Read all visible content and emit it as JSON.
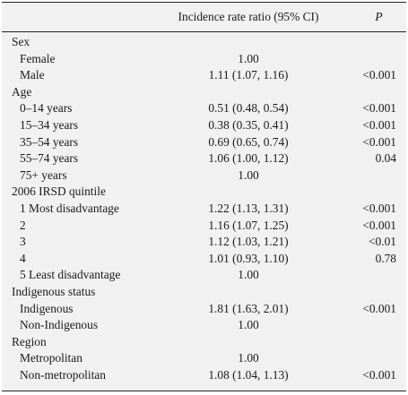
{
  "header": {
    "label": "",
    "irr": "Incidence rate ratio (95% CI)",
    "p": "P"
  },
  "rows": [
    {
      "type": "group",
      "label": "Sex",
      "irr": "",
      "p": ""
    },
    {
      "type": "level",
      "label": "Female",
      "irr": "1.00",
      "p": ""
    },
    {
      "type": "level",
      "label": "Male",
      "irr": "1.11 (1.07, 1.16)",
      "p": "<0.001"
    },
    {
      "type": "group",
      "label": "Age",
      "irr": "",
      "p": ""
    },
    {
      "type": "level",
      "label": "0–14 years",
      "irr": "0.51 (0.48, 0.54)",
      "p": "<0.001"
    },
    {
      "type": "level",
      "label": "15–34 years",
      "irr": "0.38 (0.35, 0.41)",
      "p": "<0.001"
    },
    {
      "type": "level",
      "label": "35–54 years",
      "irr": "0.69 (0.65, 0.74)",
      "p": "<0.001"
    },
    {
      "type": "level",
      "label": "55–74 years",
      "irr": "1.06 (1.00, 1.12)",
      "p": "0.04"
    },
    {
      "type": "level",
      "label": "75+ years",
      "irr": "1.00",
      "p": ""
    },
    {
      "type": "group",
      "label": "2006 IRSD quintile",
      "irr": "",
      "p": ""
    },
    {
      "type": "level",
      "label": "1 Most disadvantage",
      "irr": "1.22 (1.13, 1.31)",
      "p": "<0.001"
    },
    {
      "type": "level",
      "label": "2",
      "irr": "1.16 (1.07, 1.25)",
      "p": "<0.001"
    },
    {
      "type": "level",
      "label": "3",
      "irr": "1.12 (1.03, 1.21)",
      "p": "<0.01"
    },
    {
      "type": "level",
      "label": "4",
      "irr": "1.01 (0.93, 1.10)",
      "p": "0.78"
    },
    {
      "type": "level",
      "label": "5 Least disadvantage",
      "irr": "1.00",
      "p": ""
    },
    {
      "type": "group",
      "label": "Indigenous status",
      "irr": "",
      "p": ""
    },
    {
      "type": "level",
      "label": "Indigenous",
      "irr": "1.81 (1.63, 2.01)",
      "p": "<0.001"
    },
    {
      "type": "level",
      "label": "Non-Indigenous",
      "irr": "1.00",
      "p": ""
    },
    {
      "type": "group",
      "label": "Region",
      "irr": "",
      "p": ""
    },
    {
      "type": "level",
      "label": "Metropolitan",
      "irr": "1.00",
      "p": ""
    },
    {
      "type": "level",
      "label": "Non-metropolitan",
      "irr": "1.08 (1.04, 1.13)",
      "p": "<0.001"
    }
  ]
}
